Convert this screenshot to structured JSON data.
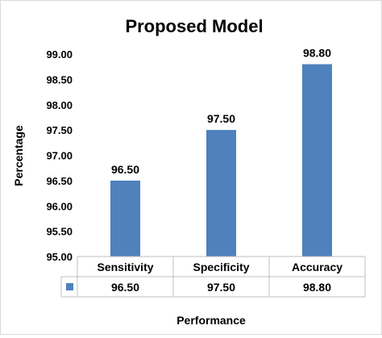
{
  "chart_data": {
    "type": "bar",
    "title": "Proposed Model",
    "xlabel": "Performance",
    "ylabel": "Percentage",
    "categories": [
      "Sensitivity",
      "Specificity",
      "Accuracy"
    ],
    "series": [
      {
        "values": [
          96.5,
          97.5,
          98.8
        ],
        "labels": [
          "96.50",
          "97.50",
          "98.80"
        ],
        "color": "#4f81bd"
      }
    ],
    "ylim": [
      95.0,
      99.0
    ],
    "yticks": [
      "95.00",
      "95.50",
      "96.00",
      "96.50",
      "97.00",
      "97.50",
      "98.00",
      "98.50",
      "99.00"
    ],
    "grid": false,
    "data_table": true
  }
}
